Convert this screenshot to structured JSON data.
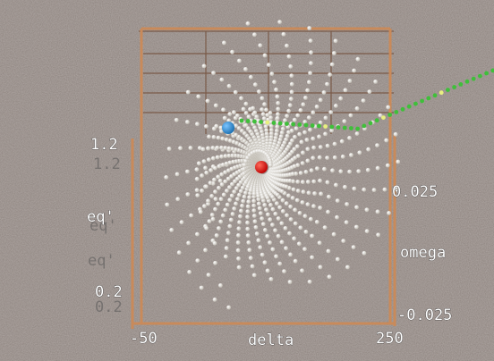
{
  "scene": {
    "axes": {
      "eq_axis": {
        "label": "eq'",
        "ticks": [
          "1.2",
          "0.2"
        ]
      },
      "delta_axis": {
        "label": "delta",
        "ticks": [
          "-50",
          "250"
        ]
      },
      "omega_axis": {
        "label": "omega",
        "ticks": [
          "0.025",
          "-0.025"
        ]
      }
    }
  }
}
